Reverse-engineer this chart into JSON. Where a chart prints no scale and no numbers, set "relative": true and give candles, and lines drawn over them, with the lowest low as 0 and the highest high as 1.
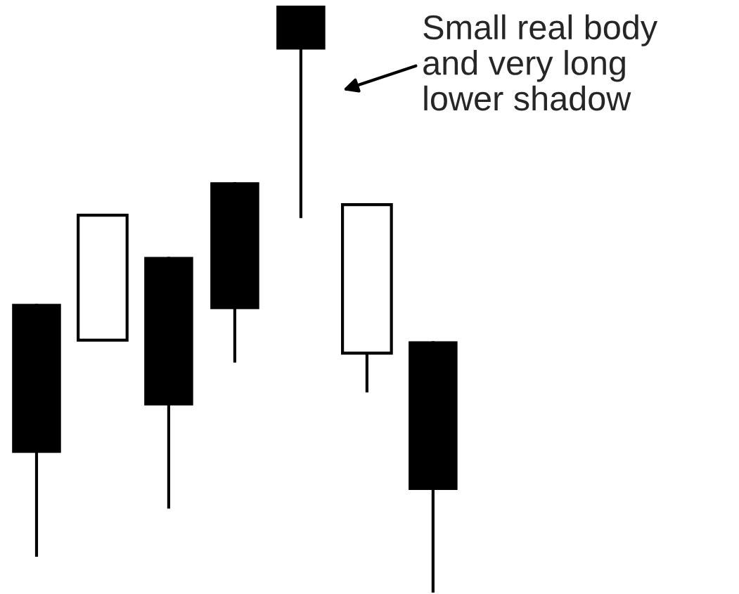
{
  "chart_data": {
    "type": "candlestick",
    "relative": true,
    "categories": [
      null,
      null,
      null,
      null,
      null,
      null,
      null
    ],
    "ohlc": [
      [
        0.492,
        0.492,
        0.061,
        0.238
      ],
      [
        0.43,
        0.643,
        0.43,
        0.643
      ],
      [
        0.572,
        0.572,
        0.143,
        0.319
      ],
      [
        0.699,
        0.699,
        0.392,
        0.483
      ],
      [
        1.0,
        1.0,
        0.638,
        0.925
      ],
      [
        0.408,
        0.661,
        0.341,
        0.661
      ],
      [
        0.428,
        0.428,
        0.0,
        0.175
      ]
    ],
    "annotations": [
      "Small real body\nand very long\nlower shadow"
    ]
  }
}
